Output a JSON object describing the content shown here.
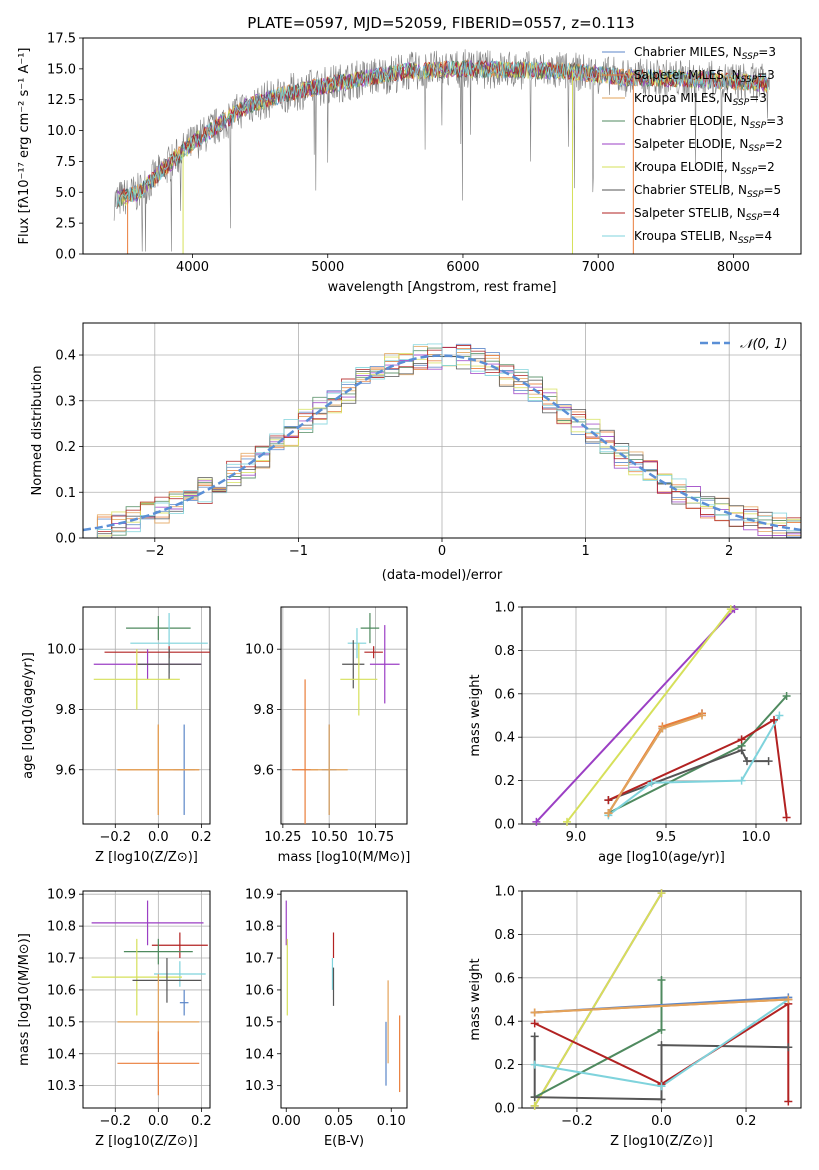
{
  "figure": {
    "title": "PLATE=0597, MJD=52059, FIBERID=0557, z=0.113"
  },
  "colors": {
    "chabrier_miles": "#5b86c8",
    "salpeter_miles": "#e97d3a",
    "kroupa_miles": "#e3a35a",
    "chabrier_elodie": "#4f8a5f",
    "salpeter_elodie": "#9b3fc4",
    "kroupa_elodie": "#d6e05a",
    "chabrier_stelib": "#555555",
    "salpeter_stelib": "#b22222",
    "kroupa_stelib": "#7fd3dc",
    "spectrum": "#808080",
    "normal": "#5a8fd6",
    "grid": "#b0b0b0"
  },
  "legend": [
    {
      "label": "Chabrier MILES, N",
      "sub": "SSP",
      "n": "=3",
      "color_key": "chabrier_miles"
    },
    {
      "label": "Salpeter MILES, N",
      "sub": "SSP",
      "n": "=3",
      "color_key": "salpeter_miles"
    },
    {
      "label": "Kroupa MILES, N",
      "sub": "SSP",
      "n": "=3",
      "color_key": "kroupa_miles"
    },
    {
      "label": "Chabrier ELODIE, N",
      "sub": "SSP",
      "n": "=3",
      "color_key": "chabrier_elodie"
    },
    {
      "label": "Salpeter ELODIE, N",
      "sub": "SSP",
      "n": "=2",
      "color_key": "salpeter_elodie"
    },
    {
      "label": "Kroupa ELODIE, N",
      "sub": "SSP",
      "n": "=2",
      "color_key": "kroupa_elodie"
    },
    {
      "label": "Chabrier STELIB, N",
      "sub": "SSP",
      "n": "=5",
      "color_key": "chabrier_stelib"
    },
    {
      "label": "Salpeter STELIB, N",
      "sub": "SSP",
      "n": "=4",
      "color_key": "salpeter_stelib"
    },
    {
      "label": "Kroupa STELIB, N",
      "sub": "SSP",
      "n": "=4",
      "color_key": "kroupa_stelib"
    }
  ],
  "chart_data": [
    {
      "id": "spectrum",
      "type": "line",
      "title": "PLATE=0597, MJD=52059, FIBERID=0557, z=0.113",
      "xlabel": "wavelength [Angstrom, rest frame]",
      "ylabel": "Flux [fλ10⁻¹⁷ erg cm⁻² s⁻¹ A⁻¹]",
      "xlim": [
        3190,
        8500
      ],
      "ylim": [
        0,
        17.5
      ],
      "xticks": [
        4000,
        5000,
        6000,
        7000,
        8000
      ],
      "yticks": [
        0.0,
        2.5,
        5.0,
        7.5,
        10.0,
        12.5,
        15.0,
        17.5
      ],
      "x_range": [
        3420,
        8270
      ],
      "continuum": [
        [
          3420,
          4.3
        ],
        [
          3600,
          5.0
        ],
        [
          3800,
          7.0
        ],
        [
          4000,
          9.0
        ],
        [
          4200,
          10.5
        ],
        [
          4400,
          12.0
        ],
        [
          4700,
          13.0
        ],
        [
          5000,
          13.7
        ],
        [
          5300,
          14.3
        ],
        [
          5600,
          14.8
        ],
        [
          6000,
          15.0
        ],
        [
          6400,
          14.9
        ],
        [
          6800,
          14.8
        ],
        [
          7200,
          14.3
        ],
        [
          7600,
          14.2
        ],
        [
          8000,
          14.0
        ],
        [
          8270,
          13.8
        ]
      ],
      "model_dips": [
        [
          3520,
          0.0
        ],
        [
          3930,
          0.0
        ],
        [
          6810,
          0.0
        ],
        [
          7260,
          0.0
        ]
      ],
      "legend_loc": "right",
      "grid": false
    },
    {
      "id": "residuals",
      "type": "line",
      "xlabel": "(data-model)/error",
      "ylabel": "Normed distribution",
      "xlim": [
        -2.5,
        2.5
      ],
      "ylim": [
        0,
        0.47
      ],
      "xticks": [
        -2,
        -1,
        0,
        1,
        2
      ],
      "yticks": [
        0.0,
        0.1,
        0.2,
        0.3,
        0.4
      ],
      "series": [
        {
          "name": "𝒩(0, 1)",
          "mean": 0,
          "sigma": 1
        }
      ],
      "hist_bin_width": 0.1,
      "legend_loc": "top-right",
      "grid": true
    },
    {
      "id": "age_vs_Z",
      "type": "scatter",
      "xlabel": "Z [log10(Z/Z⊙)]",
      "ylabel": "age  [log10(age/yr)]",
      "xlim": [
        -0.35,
        0.24
      ],
      "ylim": [
        9.42,
        10.14
      ],
      "xticks": [
        -0.2,
        0.0,
        0.2
      ],
      "xtick_labels": [
        "−0.2",
        "0.0",
        "0.2"
      ],
      "yticks": [
        9.6,
        9.8,
        10.0
      ],
      "yticks_labels": [
        "9.6",
        "9.8",
        "10.0"
      ],
      "points": [
        {
          "key": "chabrier_elodie",
          "x": 0.0,
          "y": 10.07,
          "xerr": 0.15,
          "yerr": 0.04
        },
        {
          "key": "kroupa_stelib",
          "x": 0.05,
          "y": 10.02,
          "xerr": 0.18,
          "yerr": 0.1
        },
        {
          "key": "salpeter_stelib",
          "x": 0.05,
          "y": 9.99,
          "xerr": 0.3,
          "yerr": 0.02
        },
        {
          "key": "salpeter_elodie",
          "x": -0.05,
          "y": 9.95,
          "xerr": 0.25,
          "yerr": 0.05
        },
        {
          "key": "chabrier_stelib",
          "x": 0.05,
          "y": 9.95,
          "xerr": 0.15,
          "yerr": 0.05
        },
        {
          "key": "kroupa_elodie",
          "x": -0.1,
          "y": 9.9,
          "xerr": 0.2,
          "yerr": 0.1
        },
        {
          "key": "chabrier_miles",
          "x": 0.12,
          "y": 9.6,
          "xerr": 0.05,
          "yerr": 0.15
        },
        {
          "key": "salpeter_miles",
          "x": 0.0,
          "y": 9.6,
          "xerr": 0.19,
          "yerr": 0.15
        },
        {
          "key": "kroupa_miles",
          "x": 0.0,
          "y": 9.6,
          "xerr": 0.19,
          "yerr": 0.15
        }
      ],
      "grid": true
    },
    {
      "id": "age_vs_mass",
      "type": "scatter",
      "xlabel": "mass [log10(M/M⊙)]",
      "ylabel": "",
      "xlim": [
        10.24,
        10.92
      ],
      "ylim": [
        9.42,
        10.14
      ],
      "xticks": [
        10.25,
        10.5,
        10.75
      ],
      "xtick_labels": [
        "10.25",
        "10.50",
        "10.75"
      ],
      "yticks": [
        9.6,
        9.8,
        10.0
      ],
      "yticks_labels": [
        "9.6",
        "9.8",
        "10.0"
      ],
      "points": [
        {
          "key": "chabrier_elodie",
          "x": 10.72,
          "y": 10.07,
          "xerr": 0.05,
          "yerr": 0.05
        },
        {
          "key": "kroupa_stelib",
          "x": 10.65,
          "y": 10.02,
          "xerr": 0.05,
          "yerr": 0.05
        },
        {
          "key": "salpeter_stelib",
          "x": 10.74,
          "y": 9.99,
          "xerr": 0.05,
          "yerr": 0.02
        },
        {
          "key": "salpeter_elodie",
          "x": 10.8,
          "y": 9.95,
          "xerr": 0.08,
          "yerr": 0.13
        },
        {
          "key": "chabrier_stelib",
          "x": 10.63,
          "y": 9.95,
          "xerr": 0.06,
          "yerr": 0.08
        },
        {
          "key": "kroupa_elodie",
          "x": 10.66,
          "y": 9.9,
          "xerr": 0.1,
          "yerr": 0.12
        },
        {
          "key": "chabrier_miles",
          "x": 10.5,
          "y": 9.6,
          "xerr": 0.04,
          "yerr": 0.15
        },
        {
          "key": "salpeter_miles",
          "x": 10.37,
          "y": 9.6,
          "xerr": 0.07,
          "yerr": 0.3
        },
        {
          "key": "kroupa_miles",
          "x": 10.5,
          "y": 9.6,
          "xerr": 0.1,
          "yerr": 0.15
        }
      ],
      "grid": true
    },
    {
      "id": "weight_vs_age",
      "type": "line",
      "xlabel": "age  [log10(age/yr)]",
      "ylabel": "mass weight",
      "xlim": [
        8.7,
        10.25
      ],
      "ylim": [
        0,
        1.0
      ],
      "xticks": [
        9.0,
        9.5,
        10.0
      ],
      "xtick_labels": [
        "9.0",
        "9.5",
        "10.0"
      ],
      "yticks": [
        0.0,
        0.2,
        0.4,
        0.6,
        0.8,
        1.0
      ],
      "ytick_labels": [
        "0.0",
        "0.2",
        "0.4",
        "0.6",
        "0.8",
        "1.0"
      ],
      "series": [
        {
          "key": "salpeter_elodie",
          "points": [
            [
              8.78,
              0.01
            ],
            [
              9.88,
              0.99
            ]
          ]
        },
        {
          "key": "kroupa_elodie",
          "points": [
            [
              8.95,
              0.01
            ],
            [
              9.86,
              0.99
            ]
          ]
        },
        {
          "key": "chabrier_elodie",
          "points": [
            [
              9.18,
              0.05
            ],
            [
              9.92,
              0.36
            ],
            [
              10.17,
              0.59
            ]
          ]
        },
        {
          "key": "chabrier_stelib",
          "points": [
            [
              9.18,
              0.11
            ],
            [
              9.92,
              0.34
            ],
            [
              9.95,
              0.29
            ],
            [
              10.07,
              0.29
            ]
          ]
        },
        {
          "key": "salpeter_stelib",
          "points": [
            [
              9.18,
              0.11
            ],
            [
              9.92,
              0.39
            ],
            [
              10.1,
              0.48
            ],
            [
              10.17,
              0.03
            ]
          ]
        },
        {
          "key": "kroupa_stelib",
          "points": [
            [
              9.18,
              0.04
            ],
            [
              9.42,
              0.19
            ],
            [
              9.92,
              0.2
            ],
            [
              10.13,
              0.5
            ]
          ]
        },
        {
          "key": "chabrier_miles",
          "points": [
            [
              9.18,
              0.05
            ],
            [
              9.48,
              0.44
            ],
            [
              9.7,
              0.51
            ]
          ]
        },
        {
          "key": "salpeter_miles",
          "points": [
            [
              9.18,
              0.05
            ],
            [
              9.48,
              0.45
            ],
            [
              9.7,
              0.51
            ]
          ]
        },
        {
          "key": "kroupa_miles",
          "points": [
            [
              9.18,
              0.05
            ],
            [
              9.48,
              0.44
            ],
            [
              9.7,
              0.5
            ]
          ]
        }
      ],
      "grid": true
    },
    {
      "id": "mass_vs_Z",
      "type": "scatter",
      "xlabel": "Z [log10(Z/Z⊙)]",
      "ylabel": "mass [log10(M/M⊙)]",
      "xlim": [
        -0.35,
        0.24
      ],
      "ylim": [
        10.23,
        10.91
      ],
      "xticks": [
        -0.2,
        0.0,
        0.2
      ],
      "xtick_labels": [
        "−0.2",
        "0.0",
        "0.2"
      ],
      "yticks": [
        10.3,
        10.4,
        10.5,
        10.6,
        10.7,
        10.8,
        10.9
      ],
      "ytick_labels": [
        "10.3",
        "10.4",
        "10.5",
        "10.6",
        "10.7",
        "10.8",
        "10.9"
      ],
      "points": [
        {
          "key": "salpeter_elodie",
          "x": -0.05,
          "y": 10.81,
          "xerr": 0.26,
          "yerr": 0.07
        },
        {
          "key": "salpeter_stelib",
          "x": 0.1,
          "y": 10.74,
          "xerr": 0.13,
          "yerr": 0.04
        },
        {
          "key": "chabrier_elodie",
          "x": 0.0,
          "y": 10.72,
          "xerr": 0.16,
          "yerr": 0.04
        },
        {
          "key": "kroupa_stelib",
          "x": 0.1,
          "y": 10.65,
          "xerr": 0.12,
          "yerr": 0.04
        },
        {
          "key": "kroupa_elodie",
          "x": -0.1,
          "y": 10.64,
          "xerr": 0.21,
          "yerr": 0.12
        },
        {
          "key": "chabrier_stelib",
          "x": 0.04,
          "y": 10.63,
          "xerr": 0.16,
          "yerr": 0.07
        },
        {
          "key": "chabrier_miles",
          "x": 0.12,
          "y": 10.56,
          "xerr": 0.02,
          "yerr": 0.04
        },
        {
          "key": "kroupa_miles",
          "x": 0.0,
          "y": 10.5,
          "xerr": 0.19,
          "yerr": 0.15
        },
        {
          "key": "salpeter_miles",
          "x": 0.0,
          "y": 10.37,
          "xerr": 0.19,
          "yerr": 0.1
        }
      ],
      "grid": true
    },
    {
      "id": "mass_vs_EBV",
      "type": "scatter",
      "xlabel": "E(B-V)",
      "ylabel": "",
      "xlim": [
        -0.005,
        0.115
      ],
      "ylim": [
        10.23,
        10.91
      ],
      "xticks": [
        0.0,
        0.05,
        0.1
      ],
      "xtick_labels": [
        "0.00",
        "0.05",
        "0.10"
      ],
      "yticks": [
        10.3,
        10.4,
        10.5,
        10.6,
        10.7,
        10.8,
        10.9
      ],
      "ytick_labels": [
        "10.3",
        "10.4",
        "10.5",
        "10.6",
        "10.7",
        "10.8",
        "10.9"
      ],
      "points": [
        {
          "key": "salpeter_elodie",
          "x": 0.0,
          "y": 10.81,
          "xerr": 0,
          "yerr": 0.07
        },
        {
          "key": "kroupa_elodie",
          "x": 0.001,
          "y": 10.64,
          "xerr": 0,
          "yerr": 0.12
        },
        {
          "key": "salpeter_stelib",
          "x": 0.045,
          "y": 10.74,
          "xerr": 0,
          "yerr": 0.04
        },
        {
          "key": "kroupa_stelib",
          "x": 0.044,
          "y": 10.65,
          "xerr": 0,
          "yerr": 0.05
        },
        {
          "key": "chabrier_stelib",
          "x": 0.045,
          "y": 10.61,
          "xerr": 0,
          "yerr": 0.06
        },
        {
          "key": "chabrier_miles",
          "x": 0.095,
          "y": 10.4,
          "xerr": 0,
          "yerr": 0.1
        },
        {
          "key": "kroupa_miles",
          "x": 0.097,
          "y": 10.5,
          "xerr": 0,
          "yerr": 0.13
        },
        {
          "key": "salpeter_miles",
          "x": 0.108,
          "y": 10.4,
          "xerr": 0,
          "yerr": 0.12
        }
      ],
      "grid": false
    },
    {
      "id": "weight_vs_Z",
      "type": "line",
      "xlabel": "Z [log10(Z/Z⊙)]",
      "ylabel": "mass weight",
      "xlim": [
        -0.33,
        0.33
      ],
      "ylim": [
        0,
        1.0
      ],
      "xticks": [
        -0.2,
        0.0,
        0.2
      ],
      "xtick_labels": [
        "−0.2",
        "0.0",
        "0.2"
      ],
      "yticks": [
        0.0,
        0.2,
        0.4,
        0.6,
        0.8,
        1.0
      ],
      "ytick_labels": [
        "0.0",
        "0.2",
        "0.4",
        "0.6",
        "0.8",
        "1.0"
      ],
      "series": [
        {
          "key": "salpeter_elodie",
          "points": [
            [
              -0.3,
              0.01
            ],
            [
              0.0,
              0.99
            ]
          ]
        },
        {
          "key": "kroupa_elodie",
          "points": [
            [
              -0.3,
              0.01
            ],
            [
              0.0,
              0.99
            ]
          ]
        },
        {
          "key": "chabrier_elodie",
          "points": [
            [
              -0.3,
              0.05
            ],
            [
              0.0,
              0.36
            ],
            [
              0.0,
              0.59
            ]
          ]
        },
        {
          "key": "chabrier_stelib",
          "points": [
            [
              -0.3,
              0.33
            ],
            [
              -0.3,
              0.05
            ],
            [
              0.0,
              0.04
            ],
            [
              0.0,
              0.29
            ],
            [
              0.3,
              0.28
            ]
          ]
        },
        {
          "key": "salpeter_stelib",
          "points": [
            [
              -0.3,
              0.39
            ],
            [
              0.0,
              0.11
            ],
            [
              0.3,
              0.48
            ],
            [
              0.3,
              0.03
            ]
          ]
        },
        {
          "key": "kroupa_stelib",
          "points": [
            [
              -0.3,
              0.2
            ],
            [
              0.0,
              0.1
            ],
            [
              0.3,
              0.5
            ]
          ]
        },
        {
          "key": "chabrier_miles",
          "points": [
            [
              -0.3,
              0.44
            ],
            [
              0.3,
              0.51
            ]
          ]
        },
        {
          "key": "salpeter_miles",
          "points": [
            [
              -0.3,
              0.44
            ],
            [
              0.3,
              0.5
            ]
          ]
        },
        {
          "key": "kroupa_miles",
          "points": [
            [
              -0.3,
              0.44
            ],
            [
              0.3,
              0.5
            ]
          ]
        }
      ],
      "grid": true
    }
  ]
}
